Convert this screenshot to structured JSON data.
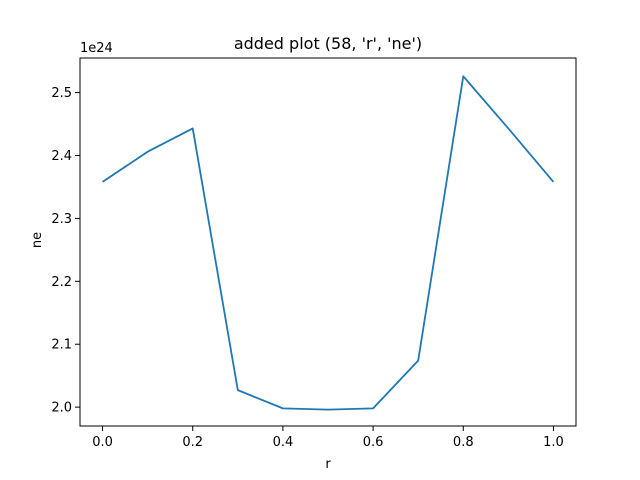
{
  "chart_data": {
    "type": "line",
    "title": "added plot (58, 'r', 'ne')",
    "xlabel": "r",
    "ylabel": "ne",
    "offset_text": "1e24",
    "x_ticks": [
      "0.0",
      "0.2",
      "0.4",
      "0.6",
      "0.8",
      "1.0"
    ],
    "y_ticks": [
      "2.0",
      "2.1",
      "2.2",
      "2.3",
      "2.4",
      "2.5"
    ],
    "xlim": [
      -0.05,
      1.05
    ],
    "ylim": [
      1.97,
      2.555
    ],
    "y_scale_exponent": 24,
    "grid": false,
    "series": [
      {
        "color": "#1f77b4",
        "x": [
          0.0,
          0.1,
          0.2,
          0.3,
          0.4,
          0.5,
          0.6,
          0.7,
          0.8,
          0.9,
          1.0
        ],
        "y": [
          2.358,
          2.406,
          2.443,
          2.027,
          1.998,
          1.996,
          1.998,
          2.074,
          2.526,
          2.443,
          2.358
        ]
      }
    ]
  }
}
